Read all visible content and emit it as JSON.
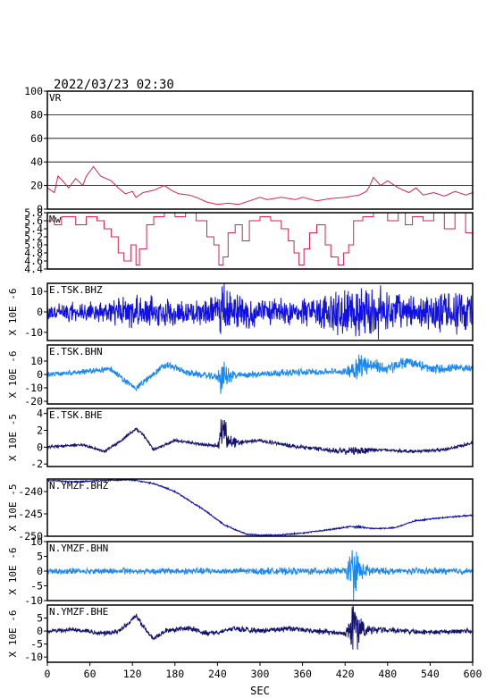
{
  "header": {
    "timestamp": "2022/03/23 02:30"
  },
  "chart_data": {
    "type": "line",
    "xlabel": "SEC",
    "xlim": [
      0,
      600
    ],
    "x_ticks": [
      "0",
      "60",
      "120",
      "180",
      "240",
      "300",
      "360",
      "420",
      "480",
      "540",
      "600"
    ],
    "panels": [
      {
        "label": "VR",
        "ylabel": "",
        "color": "#d6244e",
        "kind": "line",
        "ylim": [
          0,
          100
        ],
        "y_ticks": [
          "0",
          "20",
          "40",
          "60",
          "80",
          "100"
        ],
        "tick_values": [
          0,
          20,
          40,
          60,
          80,
          100
        ],
        "grid": true,
        "points": [
          [
            0,
            18
          ],
          [
            10,
            14
          ],
          [
            15,
            28
          ],
          [
            20,
            25
          ],
          [
            30,
            18
          ],
          [
            40,
            26
          ],
          [
            50,
            20
          ],
          [
            55,
            28
          ],
          [
            65,
            36
          ],
          [
            75,
            28
          ],
          [
            90,
            24
          ],
          [
            100,
            18
          ],
          [
            110,
            13
          ],
          [
            120,
            15
          ],
          [
            125,
            10
          ],
          [
            135,
            14
          ],
          [
            150,
            16
          ],
          [
            165,
            20
          ],
          [
            175,
            16
          ],
          [
            185,
            13
          ],
          [
            200,
            12
          ],
          [
            210,
            10
          ],
          [
            225,
            6
          ],
          [
            240,
            4
          ],
          [
            255,
            5
          ],
          [
            270,
            4
          ],
          [
            285,
            7
          ],
          [
            300,
            10
          ],
          [
            310,
            8
          ],
          [
            330,
            10
          ],
          [
            350,
            8
          ],
          [
            360,
            10
          ],
          [
            380,
            7
          ],
          [
            400,
            9
          ],
          [
            420,
            10
          ],
          [
            440,
            12
          ],
          [
            450,
            15
          ],
          [
            455,
            20
          ],
          [
            460,
            27
          ],
          [
            470,
            20
          ],
          [
            480,
            24
          ],
          [
            495,
            18
          ],
          [
            510,
            14
          ],
          [
            520,
            18
          ],
          [
            530,
            12
          ],
          [
            545,
            14
          ],
          [
            560,
            11
          ],
          [
            575,
            15
          ],
          [
            590,
            12
          ],
          [
            600,
            14
          ]
        ]
      },
      {
        "label": "Mw",
        "ylabel": "",
        "color": "#d6244e",
        "kind": "step",
        "ylim": [
          4.4,
          5.8
        ],
        "y_ticks": [
          "4.4",
          "4.6",
          "4.8",
          "5.0",
          "5.2",
          "5.4",
          "5.6",
          "5.8"
        ],
        "tick_values": [
          4.4,
          4.6,
          4.8,
          5.0,
          5.2,
          5.4,
          5.6,
          5.8
        ],
        "grid": false,
        "points": [
          [
            0,
            5.6
          ],
          [
            10,
            5.5
          ],
          [
            20,
            5.7
          ],
          [
            40,
            5.5
          ],
          [
            55,
            5.7
          ],
          [
            70,
            5.6
          ],
          [
            80,
            5.4
          ],
          [
            90,
            5.2
          ],
          [
            100,
            4.8
          ],
          [
            108,
            4.6
          ],
          [
            118,
            5.0
          ],
          [
            125,
            4.5
          ],
          [
            130,
            4.9
          ],
          [
            140,
            5.5
          ],
          [
            150,
            5.7
          ],
          [
            165,
            5.8
          ],
          [
            180,
            5.7
          ],
          [
            195,
            5.8
          ],
          [
            210,
            5.6
          ],
          [
            225,
            5.2
          ],
          [
            235,
            5.0
          ],
          [
            242,
            4.5
          ],
          [
            248,
            4.7
          ],
          [
            255,
            5.3
          ],
          [
            265,
            5.5
          ],
          [
            275,
            5.1
          ],
          [
            285,
            5.6
          ],
          [
            300,
            5.7
          ],
          [
            315,
            5.6
          ],
          [
            330,
            5.4
          ],
          [
            340,
            5.1
          ],
          [
            348,
            4.8
          ],
          [
            355,
            4.5
          ],
          [
            362,
            4.9
          ],
          [
            370,
            5.3
          ],
          [
            380,
            5.5
          ],
          [
            392,
            5.0
          ],
          [
            400,
            4.7
          ],
          [
            410,
            4.5
          ],
          [
            418,
            4.8
          ],
          [
            425,
            5.0
          ],
          [
            432,
            5.6
          ],
          [
            445,
            5.7
          ],
          [
            460,
            5.8
          ],
          [
            480,
            5.6
          ],
          [
            495,
            5.8
          ],
          [
            505,
            5.5
          ],
          [
            515,
            5.7
          ],
          [
            530,
            5.6
          ],
          [
            545,
            5.8
          ],
          [
            560,
            5.4
          ],
          [
            575,
            5.8
          ],
          [
            590,
            5.3
          ],
          [
            600,
            5.6
          ]
        ]
      },
      {
        "label": "E.TSK.BHZ",
        "ylabel": "X 10E -6",
        "color": "#1010e0",
        "kind": "noise",
        "ylim": [
          -14,
          14
        ],
        "y_ticks": [
          "-10",
          "0",
          "10"
        ],
        "tick_values": [
          -10,
          0,
          10
        ],
        "grid": false,
        "seed": 11,
        "baseline": [
          [
            0,
            0
          ],
          [
            600,
            0
          ]
        ],
        "noise": [
          [
            0,
            3
          ],
          [
            90,
            4
          ],
          [
            110,
            7
          ],
          [
            200,
            4
          ],
          [
            240,
            6
          ],
          [
            248,
            12
          ],
          [
            260,
            7
          ],
          [
            300,
            5
          ],
          [
            360,
            5
          ],
          [
            410,
            8
          ],
          [
            455,
            11
          ],
          [
            500,
            6
          ],
          [
            570,
            8
          ],
          [
            600,
            6
          ]
        ]
      },
      {
        "label": "E.TSK.BHN",
        "ylabel": "X 10E -6",
        "color": "#1a88f0",
        "kind": "noise",
        "ylim": [
          -22,
          22
        ],
        "y_ticks": [
          "-20",
          "-10",
          "0",
          "10"
        ],
        "tick_values": [
          -20,
          -10,
          0,
          10
        ],
        "grid": false,
        "seed": 23,
        "baseline": [
          [
            0,
            0
          ],
          [
            50,
            2
          ],
          [
            90,
            4
          ],
          [
            110,
            -5
          ],
          [
            125,
            -10
          ],
          [
            140,
            -4
          ],
          [
            160,
            5
          ],
          [
            170,
            7
          ],
          [
            200,
            1
          ],
          [
            240,
            -2
          ],
          [
            260,
            -1
          ],
          [
            320,
            1
          ],
          [
            380,
            2
          ],
          [
            420,
            2
          ],
          [
            450,
            8
          ],
          [
            480,
            4
          ],
          [
            510,
            10
          ],
          [
            540,
            4
          ],
          [
            600,
            5
          ]
        ],
        "noise": [
          [
            0,
            1.5
          ],
          [
            240,
            2
          ],
          [
            246,
            12
          ],
          [
            252,
            6
          ],
          [
            270,
            2
          ],
          [
            420,
            2
          ],
          [
            440,
            8
          ],
          [
            460,
            4
          ],
          [
            600,
            2
          ]
        ]
      },
      {
        "label": "E.TSK.BHE",
        "ylabel": "X 10E -5",
        "color": "#12126e",
        "kind": "noise",
        "ylim": [
          -2.3,
          4.6
        ],
        "y_ticks": [
          "-2",
          "0",
          "2",
          "4"
        ],
        "tick_values": [
          -2,
          0,
          2,
          4
        ],
        "grid": false,
        "seed": 37,
        "baseline": [
          [
            0,
            0
          ],
          [
            50,
            0.3
          ],
          [
            80,
            -0.5
          ],
          [
            100,
            0.5
          ],
          [
            125,
            2.2
          ],
          [
            135,
            1.5
          ],
          [
            150,
            -0.3
          ],
          [
            180,
            0.8
          ],
          [
            220,
            0.3
          ],
          [
            240,
            0.2
          ],
          [
            250,
            1.5
          ],
          [
            260,
            0.5
          ],
          [
            300,
            0.8
          ],
          [
            340,
            0.2
          ],
          [
            380,
            -0.2
          ],
          [
            420,
            -0.5
          ],
          [
            460,
            -0.3
          ],
          [
            520,
            -0.5
          ],
          [
            560,
            -0.3
          ],
          [
            590,
            0.3
          ],
          [
            600,
            0.5
          ]
        ],
        "noise": [
          [
            0,
            0.12
          ],
          [
            240,
            0.15
          ],
          [
            247,
            2.5
          ],
          [
            255,
            0.6
          ],
          [
            280,
            0.15
          ],
          [
            400,
            0.2
          ],
          [
            440,
            0.4
          ],
          [
            470,
            0.15
          ],
          [
            600,
            0.15
          ]
        ]
      },
      {
        "label": "N.YMZF.BHZ",
        "ylabel": "X 10E -5",
        "color": "#1010b0",
        "kind": "noise",
        "ylim": [
          -250,
          -237.2
        ],
        "y_ticks": [
          "-250",
          "-245",
          "-240"
        ],
        "tick_values": [
          -250,
          -245,
          -240
        ],
        "grid": false,
        "seed": 41,
        "baseline": [
          [
            0,
            -237.5
          ],
          [
            40,
            -237.8
          ],
          [
            80,
            -237.5
          ],
          [
            120,
            -237.4
          ],
          [
            150,
            -238.2
          ],
          [
            180,
            -240
          ],
          [
            220,
            -244
          ],
          [
            250,
            -247.5
          ],
          [
            280,
            -249.5
          ],
          [
            300,
            -249.8
          ],
          [
            330,
            -249.7
          ],
          [
            360,
            -249.3
          ],
          [
            400,
            -248.5
          ],
          [
            430,
            -247.8
          ],
          [
            460,
            -248.3
          ],
          [
            490,
            -248.1
          ],
          [
            520,
            -246.5
          ],
          [
            560,
            -245.8
          ],
          [
            600,
            -245.3
          ]
        ],
        "noise": [
          [
            0,
            0.12
          ],
          [
            420,
            0.12
          ],
          [
            435,
            0.3
          ],
          [
            450,
            0.12
          ],
          [
            600,
            0.12
          ]
        ]
      },
      {
        "label": "N.YMZF.BHN",
        "ylabel": "X 10E -6",
        "color": "#1a88f0",
        "kind": "noise",
        "ylim": [
          -10,
          10
        ],
        "y_ticks": [
          "-10",
          "-5",
          "0",
          "5",
          "10"
        ],
        "tick_values": [
          -10,
          -5,
          0,
          5,
          10
        ],
        "grid": false,
        "seed": 53,
        "baseline": [
          [
            0,
            0
          ],
          [
            600,
            0
          ]
        ],
        "noise": [
          [
            0,
            0.8
          ],
          [
            420,
            0.9
          ],
          [
            432,
            8
          ],
          [
            445,
            2
          ],
          [
            470,
            0.9
          ],
          [
            600,
            0.8
          ]
        ]
      },
      {
        "label": "N.YMZF.BHE",
        "ylabel": "X 10E -6",
        "color": "#12126e",
        "kind": "noise",
        "ylim": [
          -12,
          10
        ],
        "y_ticks": [
          "-10",
          "-5",
          "0",
          "5"
        ],
        "tick_values": [
          -10,
          -5,
          0,
          5
        ],
        "grid": false,
        "seed": 67,
        "baseline": [
          [
            0,
            0
          ],
          [
            40,
            0.5
          ],
          [
            80,
            -1
          ],
          [
            100,
            0
          ],
          [
            115,
            3
          ],
          [
            125,
            6
          ],
          [
            140,
            0
          ],
          [
            150,
            -3
          ],
          [
            165,
            0
          ],
          [
            200,
            1
          ],
          [
            230,
            -1
          ],
          [
            260,
            1
          ],
          [
            300,
            0
          ],
          [
            340,
            1
          ],
          [
            380,
            0
          ],
          [
            420,
            -1
          ],
          [
            440,
            0
          ],
          [
            480,
            0.5
          ],
          [
            540,
            -0.5
          ],
          [
            600,
            0
          ]
        ],
        "noise": [
          [
            0,
            0.7
          ],
          [
            420,
            0.8
          ],
          [
            432,
            9
          ],
          [
            448,
            2
          ],
          [
            470,
            0.8
          ],
          [
            600,
            0.7
          ]
        ]
      }
    ]
  }
}
